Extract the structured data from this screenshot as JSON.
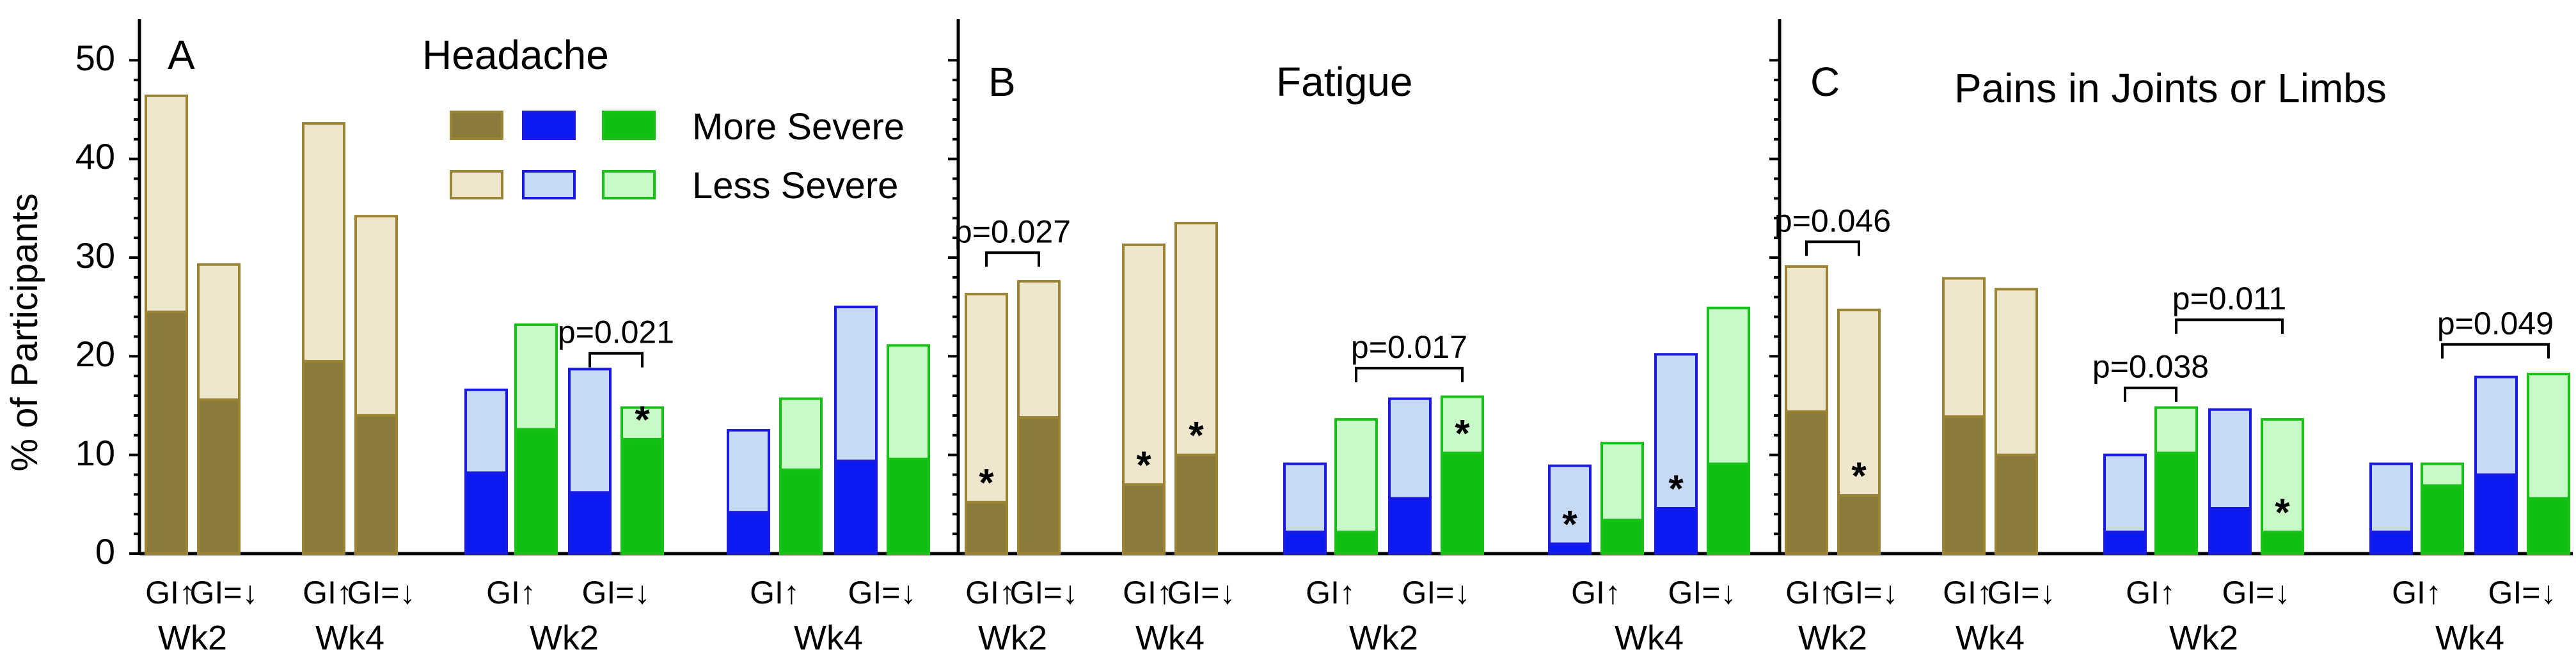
{
  "y_axis": {
    "label": "% of Participants",
    "ticks": [
      "0",
      "10",
      "20",
      "30",
      "40",
      "50"
    ],
    "range": [
      0,
      53
    ]
  },
  "legend": {
    "more_severe": "More Severe",
    "less_severe": "Less Severe"
  },
  "colors": {
    "olive_dark": "#8B7B3A",
    "olive_light": "#EDE6CC",
    "olive_edge": "#9B8535",
    "blue_dark": "#0A1AF0",
    "blue_light": "#C6DAF5",
    "blue_edge": "#1A1AE0",
    "green_dark": "#10C010",
    "green_light": "#C8FAC8",
    "green_edge": "#18C018"
  },
  "chart_data": [
    {
      "panel": "A",
      "type": "bar",
      "stacked": true,
      "title": "Headache",
      "ylabel": "% of Participants",
      "ylim": [
        0,
        53
      ],
      "bars": [
        {
          "group": "Wk2",
          "label": "GI↑",
          "color": "olive",
          "more_severe": 24.5,
          "total": 46.4,
          "star": false
        },
        {
          "group": "Wk2",
          "label": "GI=↓",
          "color": "olive",
          "more_severe": 15.6,
          "total": 29.3,
          "star": false
        },
        {
          "group": "Wk4",
          "label": "GI↑",
          "color": "olive",
          "more_severe": 19.5,
          "total": 43.6,
          "star": false
        },
        {
          "group": "Wk4",
          "label": "GI=↓",
          "color": "olive",
          "more_severe": 14.0,
          "total": 34.2,
          "star": false
        },
        {
          "group": "Wk2",
          "label": "GI↑",
          "color": "blue",
          "more_severe": 8.2,
          "total": 16.6,
          "star": false
        },
        {
          "group": "Wk2",
          "label": "GI↑",
          "color": "green",
          "more_severe": 12.6,
          "total": 23.2,
          "star": false
        },
        {
          "group": "Wk2",
          "label": "GI=↓",
          "color": "blue",
          "more_severe": 6.2,
          "total": 18.7,
          "star": false
        },
        {
          "group": "Wk2",
          "label": "GI=↓",
          "color": "green",
          "more_severe": 11.6,
          "total": 14.8,
          "star": true
        },
        {
          "group": "Wk4",
          "label": "GI↑",
          "color": "blue",
          "more_severe": 4.2,
          "total": 12.5,
          "star": false
        },
        {
          "group": "Wk4",
          "label": "GI↑",
          "color": "green",
          "more_severe": 8.5,
          "total": 15.7,
          "star": false
        },
        {
          "group": "Wk4",
          "label": "GI=↓",
          "color": "blue",
          "more_severe": 9.4,
          "total": 25.0,
          "star": false
        },
        {
          "group": "Wk4",
          "label": "GI=↓",
          "color": "green",
          "more_severe": 9.6,
          "total": 21.1,
          "star": false
        }
      ],
      "brackets": [
        {
          "text": "p=0.021",
          "from_bar": 6,
          "to_bar": 7,
          "y": 20.3
        }
      ]
    },
    {
      "panel": "B",
      "type": "bar",
      "stacked": true,
      "title": "Fatigue",
      "ylim": [
        0,
        53
      ],
      "bars": [
        {
          "group": "Wk2",
          "label": "GI↑",
          "color": "olive",
          "more_severe": 5.2,
          "total": 26.3,
          "star": true
        },
        {
          "group": "Wk2",
          "label": "GI=↓",
          "color": "olive",
          "more_severe": 13.8,
          "total": 27.6,
          "star": false
        },
        {
          "group": "Wk4",
          "label": "GI↑",
          "color": "olive",
          "more_severe": 7.0,
          "total": 31.3,
          "star": true
        },
        {
          "group": "Wk4",
          "label": "GI=↓",
          "color": "olive",
          "more_severe": 10.0,
          "total": 33.5,
          "star": true
        },
        {
          "group": "Wk2",
          "label": "GI↑",
          "color": "blue",
          "more_severe": 2.2,
          "total": 9.1,
          "star": false
        },
        {
          "group": "Wk2",
          "label": "GI↑",
          "color": "green",
          "more_severe": 2.2,
          "total": 13.6,
          "star": false
        },
        {
          "group": "Wk2",
          "label": "GI=↓",
          "color": "blue",
          "more_severe": 5.6,
          "total": 15.7,
          "star": false
        },
        {
          "group": "Wk2",
          "label": "GI=↓",
          "color": "green",
          "more_severe": 10.2,
          "total": 15.9,
          "star": true
        },
        {
          "group": "Wk4",
          "label": "GI↑",
          "color": "blue",
          "more_severe": 1.0,
          "total": 8.9,
          "star": true
        },
        {
          "group": "Wk4",
          "label": "GI↑",
          "color": "green",
          "more_severe": 3.4,
          "total": 11.2,
          "star": false
        },
        {
          "group": "Wk4",
          "label": "GI=↓",
          "color": "blue",
          "more_severe": 4.6,
          "total": 20.2,
          "star": true
        },
        {
          "group": "Wk4",
          "label": "GI=↓",
          "color": "green",
          "more_severe": 9.1,
          "total": 24.9,
          "star": false
        }
      ],
      "brackets": [
        {
          "text": "p=0.027",
          "from_bar": 0,
          "to_bar": 1,
          "y": 30.5
        },
        {
          "text": "p=0.017",
          "from_bar": 5,
          "to_bar": 7,
          "y": 18.8
        }
      ]
    },
    {
      "panel": "C",
      "type": "bar",
      "stacked": true,
      "title": "Pains in Joints or Limbs",
      "ylim": [
        0,
        53
      ],
      "bars": [
        {
          "group": "Wk2",
          "label": "GI↑",
          "color": "olive",
          "more_severe": 14.4,
          "total": 29.1,
          "star": false
        },
        {
          "group": "Wk2",
          "label": "GI=↓",
          "color": "olive",
          "more_severe": 5.9,
          "total": 24.7,
          "star": true
        },
        {
          "group": "Wk4",
          "label": "GI↑",
          "color": "olive",
          "more_severe": 13.9,
          "total": 27.9,
          "star": false
        },
        {
          "group": "Wk4",
          "label": "GI=↓",
          "color": "olive",
          "more_severe": 10.0,
          "total": 26.8,
          "star": false
        },
        {
          "group": "Wk2",
          "label": "GI↑",
          "color": "blue",
          "more_severe": 2.2,
          "total": 10.0,
          "star": false
        },
        {
          "group": "Wk2",
          "label": "GI↑",
          "color": "green",
          "more_severe": 10.2,
          "total": 14.8,
          "star": false
        },
        {
          "group": "Wk2",
          "label": "GI=↓",
          "color": "blue",
          "more_severe": 4.6,
          "total": 14.6,
          "star": false
        },
        {
          "group": "Wk2",
          "label": "GI=↓",
          "color": "green",
          "more_severe": 2.2,
          "total": 13.6,
          "star": true
        },
        {
          "group": "Wk4",
          "label": "GI↑",
          "color": "blue",
          "more_severe": 2.2,
          "total": 9.1,
          "star": false
        },
        {
          "group": "Wk4",
          "label": "GI↑",
          "color": "green",
          "more_severe": 6.9,
          "total": 9.1,
          "star": false
        },
        {
          "group": "Wk4",
          "label": "GI=↓",
          "color": "blue",
          "more_severe": 8.0,
          "total": 17.9,
          "star": false
        },
        {
          "group": "Wk4",
          "label": "GI=↓",
          "color": "green",
          "more_severe": 5.6,
          "total": 18.2,
          "star": false
        }
      ],
      "brackets": [
        {
          "text": "p=0.046",
          "from_bar": 0,
          "to_bar": 1,
          "y": 31.6
        },
        {
          "text": "p=0.038",
          "from_bar": 4,
          "to_bar": 5,
          "y": 16.8
        },
        {
          "text": "p=0.011",
          "from_bar": 5,
          "to_bar": 7,
          "y": 23.7
        },
        {
          "text": "p=0.049",
          "from_bar": 9,
          "to_bar": 11,
          "y": 21.2
        }
      ]
    }
  ],
  "x_labels": {
    "gi_up": "GI↑",
    "gi_down": "GI=↓",
    "wk2": "Wk2",
    "wk4": "Wk4"
  }
}
